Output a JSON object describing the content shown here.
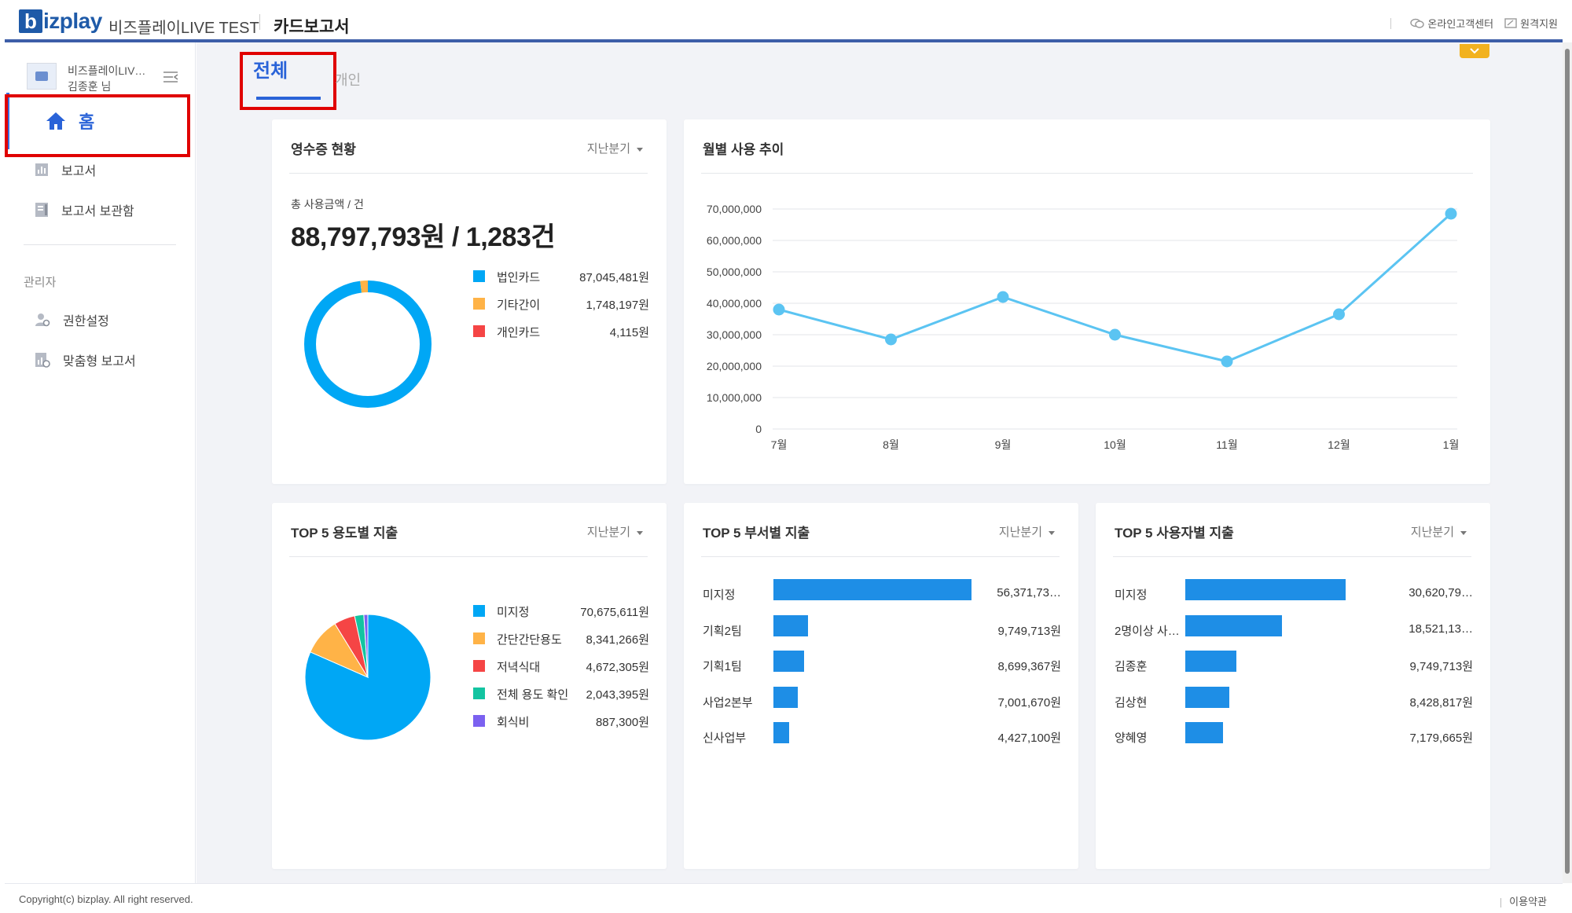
{
  "header": {
    "logo_b": "b",
    "logo_rest": "izplay",
    "company": "비즈플레이LIVE TEST",
    "page_name": "카드보고서",
    "support": "온라인고객센터",
    "remote": "원격지원"
  },
  "sidebar": {
    "company_short": "비즈플레이LIV…",
    "user_name": "김종훈 님",
    "home_label": "홈",
    "items": [
      {
        "label": "보고서",
        "icon": "chart-icon"
      },
      {
        "label": "보고서 보관함",
        "icon": "archive-icon"
      }
    ],
    "admin_section": "관리자",
    "admin_items": [
      {
        "label": "권한설정",
        "icon": "user-gear-icon"
      },
      {
        "label": "맞춤형 보고서",
        "icon": "custom-report-icon"
      }
    ]
  },
  "tabs": {
    "all": "전체",
    "personal": "개인"
  },
  "receipt_card": {
    "title": "영수증 현황",
    "filter": "지난분기",
    "sum_label": "총 사용금액 / 건",
    "sum_value": "88,797,793원 / 1,283건",
    "legend": [
      {
        "name": "법인카드",
        "value": "87,045,481원",
        "color": "#00a7f5",
        "amount": 87045481
      },
      {
        "name": "기타간이",
        "value": "1,748,197원",
        "color": "#ffb347",
        "amount": 1748197
      },
      {
        "name": "개인카드",
        "value": "4,115원",
        "color": "#f54545",
        "amount": 4115
      }
    ]
  },
  "monthly_card": {
    "title": "월별 사용 추이"
  },
  "chart_data": {
    "type": "line",
    "title": "월별 사용 추이",
    "x": [
      "7월",
      "8월",
      "9월",
      "10월",
      "11월",
      "12월",
      "1월"
    ],
    "series": [
      {
        "values": [
          38000000,
          28500000,
          42000000,
          30000000,
          21500000,
          36500000,
          68500000
        ]
      }
    ],
    "ylim": [
      0,
      70000000
    ],
    "yticks": [
      "70,000,000",
      "60,000,000",
      "50,000,000",
      "40,000,000",
      "30,000,000",
      "20,000,000",
      "10,000,000",
      "0"
    ],
    "grid": true,
    "color": "#5bc4f2"
  },
  "usage_card": {
    "title": "TOP 5 용도별 지출",
    "filter": "지난분기",
    "legend": [
      {
        "name": "미지정",
        "value": "70,675,611원",
        "color": "#00a7f5",
        "amount": 70675611
      },
      {
        "name": "간단간단용도",
        "value": "8,341,266원",
        "color": "#ffb347",
        "amount": 8341266
      },
      {
        "name": "저녁식대",
        "value": "4,672,305원",
        "color": "#f54545",
        "amount": 4672305
      },
      {
        "name": "전체 용도 확인",
        "value": "2,043,395원",
        "color": "#13c4a1",
        "amount": 2043395
      },
      {
        "name": "회식비",
        "value": "887,300원",
        "color": "#7b61f0",
        "amount": 887300
      }
    ]
  },
  "dept_card": {
    "title": "TOP 5 부서별 지출",
    "filter": "지난분기",
    "rows": [
      {
        "name": "미지정",
        "value": "56,371,73…",
        "amount": 56371730
      },
      {
        "name": "기획2팀",
        "value": "9,749,713원",
        "amount": 9749713
      },
      {
        "name": "기획1팀",
        "value": "8,699,367원",
        "amount": 8699367
      },
      {
        "name": "사업2본부",
        "value": "7,001,670원",
        "amount": 7001670
      },
      {
        "name": "신사업부",
        "value": "4,427,100원",
        "amount": 4427100
      }
    ]
  },
  "user_card": {
    "title": "TOP 5 사용자별 지출",
    "filter": "지난분기",
    "rows": [
      {
        "name": "미지정",
        "value": "30,620,79…",
        "amount": 30620790
      },
      {
        "name": "2명이상 사…",
        "value": "18,521,13…",
        "amount": 18521130
      },
      {
        "name": "김종훈",
        "value": "9,749,713원",
        "amount": 9749713
      },
      {
        "name": "김상현",
        "value": "8,428,817원",
        "amount": 8428817
      },
      {
        "name": "양혜영",
        "value": "7,179,665원",
        "amount": 7179665
      }
    ]
  },
  "footer": {
    "copyright": "Copyright(c) bizplay. All right reserved.",
    "terms": "이용약관"
  },
  "colors": {
    "accent": "#2a63d8",
    "highlight_box": "#e00000",
    "bar": "#1e8ee6"
  }
}
